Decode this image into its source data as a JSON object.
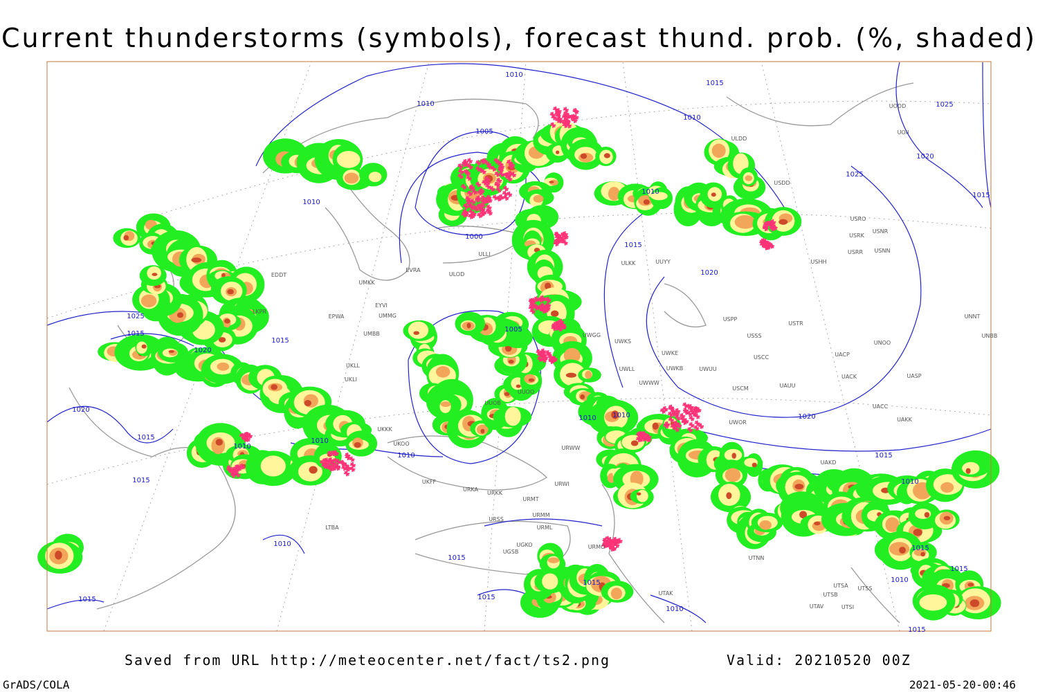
{
  "header": {
    "title": "Current thunderstorms (symbols), forecast thund. prob. (%, shaded)"
  },
  "footer": {
    "saved": "Saved from URL http://meteocenter.net/fact/ts2.png",
    "valid": "Valid: 20210520 00Z",
    "software": "GrADS/COLA",
    "timestamp": "2021-05-20-00:46"
  },
  "map": {
    "isobar_labels": [
      "1010",
      "1015",
      "1025",
      "1010",
      "1005",
      "1010",
      "1010",
      "1000",
      "1015",
      "1010",
      "1020",
      "1015",
      "1025",
      "1020",
      "1025",
      "1015",
      "1020",
      "1015",
      "1005",
      "1020",
      "1015",
      "1010",
      "1010",
      "1010",
      "1010",
      "1010",
      "1020",
      "1015",
      "1015",
      "1010",
      "1010",
      "1015",
      "1015",
      "1015",
      "1015",
      "1010",
      "1015",
      "1015",
      "1010",
      "1015"
    ],
    "stations": [
      "UODD",
      "UOII",
      "ULDD",
      "USDD",
      "USRO",
      "USRK",
      "USNR",
      "USRR",
      "USNN",
      "USHH",
      "ULLI",
      "ULKK",
      "UUYY",
      "ULOD",
      "EVRA",
      "UMKK",
      "EDDT",
      "EYVI",
      "EPWA",
      "UMMG",
      "LKPR",
      "UMBB",
      "USPP",
      "USTR",
      "USSS",
      "UNNT",
      "UNBB",
      "UNOO",
      "UWGG",
      "UWKS",
      "UWKE",
      "UWKB",
      "UWUU",
      "USCC",
      "UACP",
      "UACK",
      "UASP",
      "UWWW",
      "UWLL",
      "USCM",
      "UAUU",
      "UUOO",
      "UKLI",
      "UKLL",
      "UUOB",
      "UACC",
      "UAKK",
      "UWOR",
      "UKKK",
      "UKOO",
      "URWW",
      "UAKD",
      "UKFF",
      "URKA",
      "URKK",
      "URWI",
      "URMT",
      "URSS",
      "URMM",
      "URML",
      "UTNN",
      "UGKO",
      "UGSB",
      "URMO",
      "UTAK",
      "UTSB",
      "UTSA",
      "UTSS",
      "UTAV",
      "UTSI",
      "LTBA"
    ]
  }
}
